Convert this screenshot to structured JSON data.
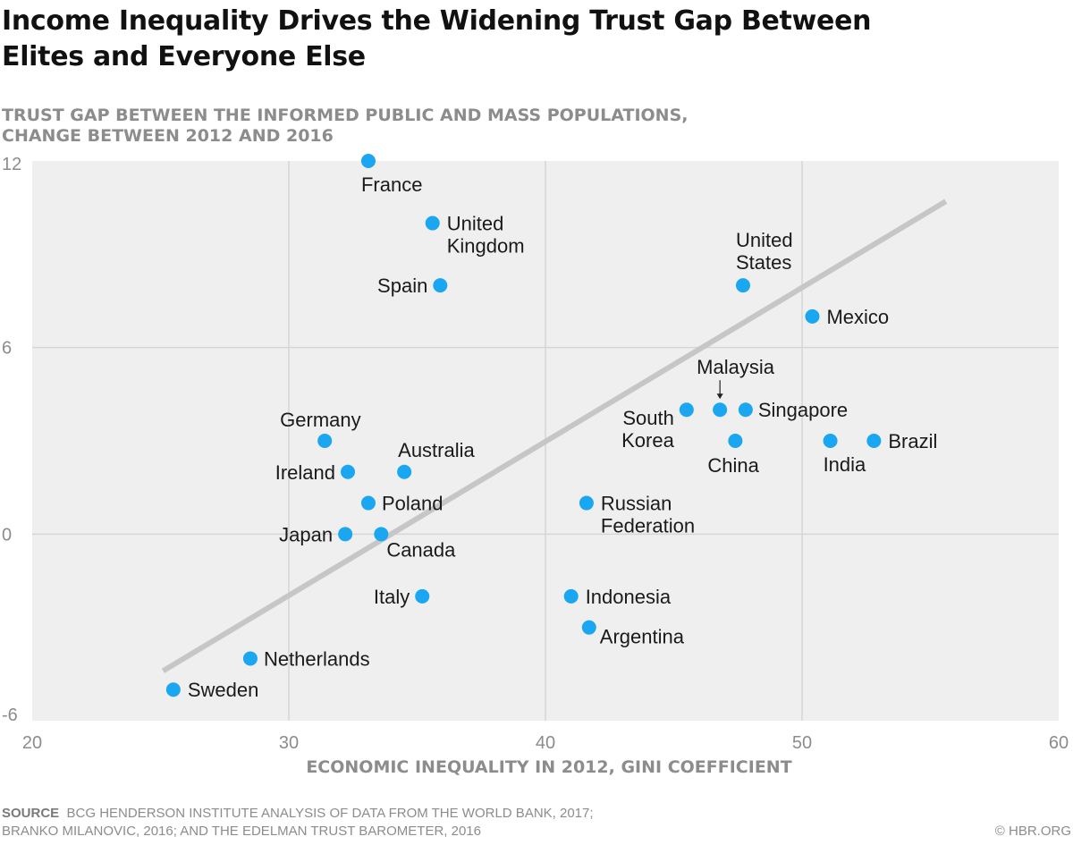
{
  "header": {
    "title_line1": "Income Inequality Drives the Widening Trust Gap Between",
    "title_line2": "Elites and Everyone Else",
    "subtitle_line1": "TRUST GAP BETWEEN THE INFORMED PUBLIC AND MASS POPULATIONS,",
    "subtitle_line2": "CHANGE BETWEEN 2012 AND 2016"
  },
  "footer": {
    "source_label": "SOURCE",
    "source_line1": "BCG HENDERSON INSTITUTE ANALYSIS OF DATA FROM THE WORLD BANK, 2017;",
    "source_line2": "BRANKO MILANOVIC, 2016; AND THE EDELMAN TRUST BAROMETER, 2016",
    "credit": "© HBR.ORG"
  },
  "colors": {
    "plot_background": "#efefef",
    "gridline": "#d6d6d6",
    "point": "#1aa6f0",
    "trendline": "#c6c6c6",
    "axis_text": "#8c8c8c",
    "label_text": "#1a1a1a"
  },
  "chart_data": {
    "type": "scatter",
    "xlabel": "ECONOMIC INEQUALITY IN 2012, GINI COEFFICIENT",
    "ylabel": "TRUST GAP BETWEEN THE INFORMED PUBLIC AND MASS POPULATIONS, CHANGE BETWEEN 2012 AND 2016",
    "xlim": [
      20,
      60
    ],
    "ylim": [
      -6,
      12
    ],
    "xticks": [
      "20",
      "30",
      "40",
      "50",
      "60"
    ],
    "yticks": [
      "12",
      "6",
      "0",
      "-6"
    ],
    "xtick_values": [
      20,
      30,
      40,
      50,
      60
    ],
    "ytick_values": [
      12,
      6,
      0,
      -6
    ],
    "grid": true,
    "trendline": {
      "x": [
        25.1,
        55.6
      ],
      "y": [
        -4.4,
        10.7
      ]
    },
    "points": [
      {
        "name": "France",
        "x": 33.1,
        "y": 12
      },
      {
        "name": "United Kingdom",
        "x": 35.6,
        "y": 10
      },
      {
        "name": "Spain",
        "x": 35.9,
        "y": 8
      },
      {
        "name": "United States",
        "x": 47.7,
        "y": 8
      },
      {
        "name": "Mexico",
        "x": 50.4,
        "y": 7
      },
      {
        "name": "Malaysia",
        "x": 46.8,
        "y": 4
      },
      {
        "name": "South Korea",
        "x": 45.5,
        "y": 4
      },
      {
        "name": "Singapore",
        "x": 47.8,
        "y": 4
      },
      {
        "name": "China",
        "x": 47.4,
        "y": 3
      },
      {
        "name": "India",
        "x": 51.1,
        "y": 3
      },
      {
        "name": "Brazil",
        "x": 52.8,
        "y": 3
      },
      {
        "name": "Germany",
        "x": 31.4,
        "y": 3
      },
      {
        "name": "Ireland",
        "x": 32.3,
        "y": 2
      },
      {
        "name": "Australia",
        "x": 34.5,
        "y": 2
      },
      {
        "name": "Poland",
        "x": 33.1,
        "y": 1
      },
      {
        "name": "Russian Federation",
        "x": 41.6,
        "y": 1
      },
      {
        "name": "Japan",
        "x": 32.2,
        "y": 0
      },
      {
        "name": "Canada",
        "x": 33.6,
        "y": 0
      },
      {
        "name": "Italy",
        "x": 35.2,
        "y": -2
      },
      {
        "name": "Indonesia",
        "x": 41.0,
        "y": -2
      },
      {
        "name": "Argentina",
        "x": 41.7,
        "y": -3
      },
      {
        "name": "Netherlands",
        "x": 28.5,
        "y": -4
      },
      {
        "name": "Sweden",
        "x": 25.5,
        "y": -5
      }
    ]
  }
}
